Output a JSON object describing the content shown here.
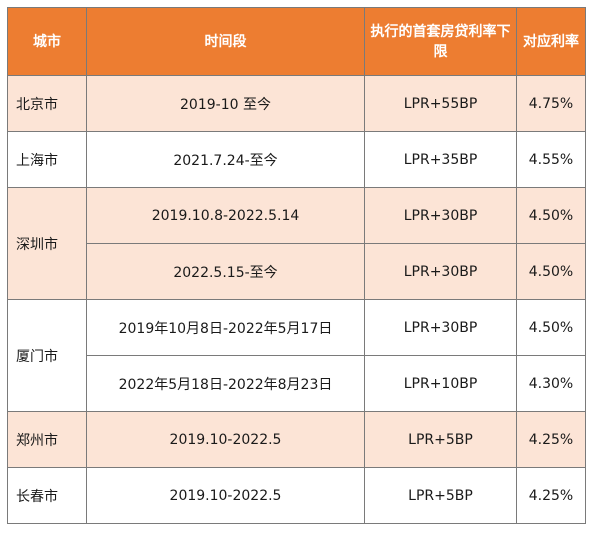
{
  "header": {
    "city": "城市",
    "period": "时间段",
    "rate_floor": "执行的首套房贷利率下限",
    "rate": "对应利率"
  },
  "rows": [
    {
      "city": "北京市",
      "period": "2019-10 至今",
      "floor": "LPR+55BP",
      "rate": "4.75%"
    },
    {
      "city": "上海市",
      "period": "2021.7.24-至今",
      "floor": "LPR+35BP",
      "rate": "4.55%"
    },
    {
      "city": "深圳市",
      "period": "2019.10.8-2022.5.14",
      "floor": "LPR+30BP",
      "rate": "4.50%"
    },
    {
      "city": "",
      "period": "2022.5.15-至今",
      "floor": "LPR+30BP",
      "rate": "4.50%"
    },
    {
      "city": "厦门市",
      "period": "2019年10月8日-2022年5月17日",
      "floor": "LPR+30BP",
      "rate": "4.50%"
    },
    {
      "city": "",
      "period": "2022年5月18日-2022年8月23日",
      "floor": "LPR+10BP",
      "rate": "4.30%"
    },
    {
      "city": "郑州市",
      "period": "2019.10-2022.5",
      "floor": "LPR+5BP",
      "rate": "4.25%"
    },
    {
      "city": "长春市",
      "period": "2019.10-2022.5",
      "floor": "LPR+5BP",
      "rate": "4.25%"
    }
  ]
}
